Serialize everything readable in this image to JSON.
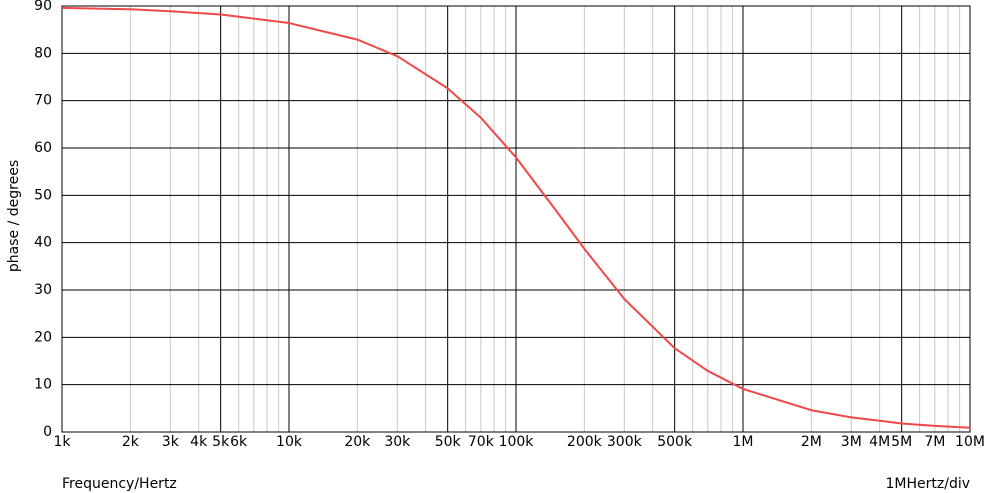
{
  "chart_data": {
    "type": "line",
    "ylabel": "phase / degrees",
    "xlabel": "Frequency/Hertz",
    "annotation": "1MHertz/div",
    "log_x": true,
    "grid": true,
    "color": "#f04848",
    "x": [
      1000,
      2000,
      3000,
      5000,
      10000,
      20000,
      30000,
      50000,
      70000,
      100000,
      150000,
      200000,
      300000,
      500000,
      700000,
      1000000,
      2000000,
      3000000,
      5000000,
      7000000,
      10000000
    ],
    "values": [
      89.6,
      89.3,
      88.9,
      88.2,
      86.4,
      82.9,
      79.4,
      72.6,
      66.4,
      58.0,
      46.8,
      38.7,
      28.1,
      17.7,
      12.9,
      9.1,
      4.6,
      3.1,
      1.8,
      1.3,
      0.9
    ],
    "xlim": [
      1000,
      10000000
    ],
    "ylim": [
      0,
      90
    ],
    "yticks": [
      0,
      10,
      20,
      30,
      40,
      50,
      60,
      70,
      80,
      90
    ],
    "xticks": [
      {
        "value": 1000,
        "label": "1k"
      },
      {
        "value": 2000,
        "label": "2k"
      },
      {
        "value": 3000,
        "label": "3k"
      },
      {
        "value": 4000,
        "label": "4k"
      },
      {
        "value": 5000,
        "label": "5k"
      },
      {
        "value": 6000,
        "label": "6k"
      },
      {
        "value": 10000,
        "label": "10k"
      },
      {
        "value": 20000,
        "label": "20k"
      },
      {
        "value": 30000,
        "label": "30k"
      },
      {
        "value": 50000,
        "label": "50k"
      },
      {
        "value": 70000,
        "label": "70k"
      },
      {
        "value": 100000,
        "label": "100k"
      },
      {
        "value": 200000,
        "label": "200k"
      },
      {
        "value": 300000,
        "label": "300k"
      },
      {
        "value": 500000,
        "label": "500k"
      },
      {
        "value": 1000000,
        "label": "1M"
      },
      {
        "value": 2000000,
        "label": "2M"
      },
      {
        "value": 3000000,
        "label": "3M"
      },
      {
        "value": 4000000,
        "label": "4M"
      },
      {
        "value": 5000000,
        "label": "5M"
      },
      {
        "value": 7000000,
        "label": "7M"
      },
      {
        "value": 10000000,
        "label": "10M"
      }
    ],
    "xgrid_minor": [
      7000,
      8000,
      9000,
      40000,
      60000,
      80000,
      90000,
      400000,
      600000,
      700000,
      800000,
      900000,
      6000000,
      8000000,
      9000000
    ]
  }
}
